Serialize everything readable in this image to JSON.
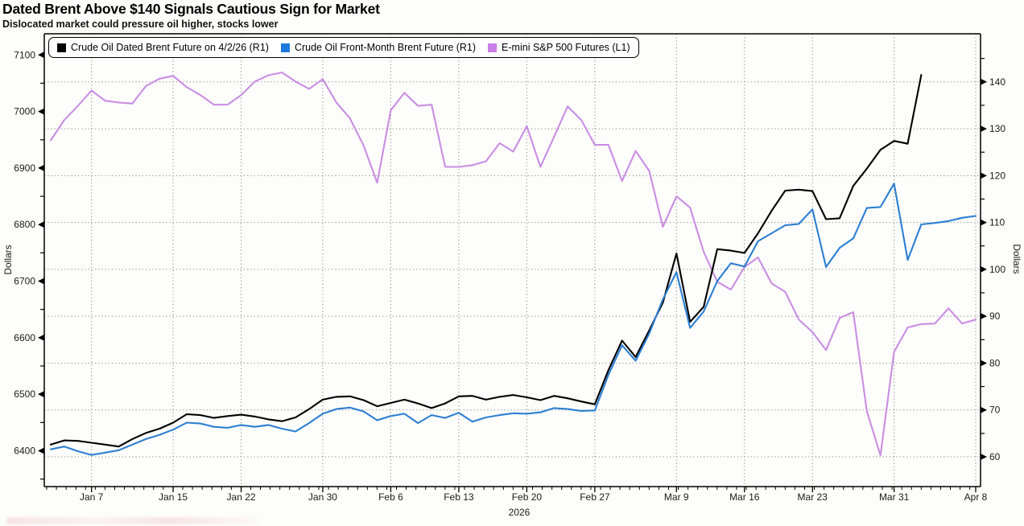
{
  "header": {
    "title": "Dated Brent Above $140 Signals Cautious Sign for Market",
    "subtitle": "Dislocated market could pressure oil higher, stocks lower"
  },
  "legend": {
    "items": [
      {
        "label": "Crude Oil Dated Brent Future on 4/2/26 (R1)",
        "color": "#000000"
      },
      {
        "label": "Crude Oil Front-Month Brent Future (R1)",
        "color": "#1d78e0"
      },
      {
        "label": "E-mini S&P 500 Futures (L1)",
        "color": "#c97ee8"
      }
    ]
  },
  "axes": {
    "left": {
      "title": "Dollars",
      "ticks": [
        6400,
        6500,
        6600,
        6700,
        6800,
        6900,
        7000,
        7100
      ]
    },
    "right": {
      "title": "Dollars",
      "ticks": [
        60,
        70,
        80,
        90,
        100,
        110,
        120,
        130,
        140
      ]
    },
    "x": {
      "year_label": "2026",
      "ticks": [
        {
          "label": "Jan 7",
          "index": 3
        },
        {
          "label": "Jan 15",
          "index": 9
        },
        {
          "label": "Jan 22",
          "index": 14
        },
        {
          "label": "Jan 30",
          "index": 20
        },
        {
          "label": "Feb 6",
          "index": 25
        },
        {
          "label": "Feb 13",
          "index": 30
        },
        {
          "label": "Feb 20",
          "index": 35
        },
        {
          "label": "Feb 27",
          "index": 40
        },
        {
          "label": "Mar 9",
          "index": 46
        },
        {
          "label": "Mar 16",
          "index": 51
        },
        {
          "label": "Mar 23",
          "index": 56
        },
        {
          "label": "Mar 31",
          "index": 62
        },
        {
          "label": "Apr 8",
          "index": 68
        }
      ]
    }
  },
  "chart_data": {
    "type": "line",
    "title": "Dated Brent Above $140 Signals Cautious Sign for Market",
    "x_dates": [
      "Jan 2",
      "Jan 5",
      "Jan 6",
      "Jan 7",
      "Jan 8",
      "Jan 9",
      "Jan 12",
      "Jan 13",
      "Jan 14",
      "Jan 15",
      "Jan 16",
      "Jan 19",
      "Jan 20",
      "Jan 21",
      "Jan 22",
      "Jan 23",
      "Jan 26",
      "Jan 27",
      "Jan 28",
      "Jan 29",
      "Jan 30",
      "Feb 2",
      "Feb 3",
      "Feb 4",
      "Feb 5",
      "Feb 6",
      "Feb 9",
      "Feb 10",
      "Feb 11",
      "Feb 12",
      "Feb 13",
      "Feb 16",
      "Feb 17",
      "Feb 18",
      "Feb 19",
      "Feb 20",
      "Feb 23",
      "Feb 24",
      "Feb 25",
      "Feb 26",
      "Feb 27",
      "Mar 2",
      "Mar 3",
      "Mar 4",
      "Mar 5",
      "Mar 6",
      "Mar 9",
      "Mar 10",
      "Mar 11",
      "Mar 12",
      "Mar 13",
      "Mar 16",
      "Mar 17",
      "Mar 18",
      "Mar 19",
      "Mar 20",
      "Mar 23",
      "Mar 24",
      "Mar 25",
      "Mar 26",
      "Mar 27",
      "Mar 30",
      "Mar 31",
      "Apr 1",
      "Apr 2",
      "Apr 3",
      "Apr 6",
      "Apr 7",
      "Apr 8"
    ],
    "year": "2026",
    "left_axis": {
      "label": "Dollars",
      "tick_min": 6400,
      "tick_max": 7100,
      "plot_min": 6329,
      "plot_max": 7119
    },
    "right_axis": {
      "label": "Dollars",
      "tick_min": 60,
      "tick_max": 140,
      "plot_min": 52.8,
      "plot_max": 148
    },
    "grid": {
      "horizontal": "dotted at right-axis ticks",
      "vertical": "dotted at labeled dates"
    },
    "legend_position": "top-left inside plot, boxed",
    "series": [
      {
        "name": "E-mini S&P 500 Futures (L1)",
        "axis": "left",
        "color": "#c98ee2",
        "values": [
          6949,
          6985,
          7010,
          7037,
          7019,
          7016,
          7014,
          7045,
          7058,
          7063,
          7043,
          7029,
          7012,
          7012,
          7029,
          7053,
          7064,
          7069,
          7053,
          7040,
          7057,
          7016,
          6988,
          6940,
          6874,
          7002,
          7033,
          7010,
          7012,
          6902,
          6902,
          6905,
          6912,
          6944,
          6929,
          6974,
          6902,
          6955,
          7009,
          6985,
          6941,
          6941,
          6877,
          6930,
          6895,
          6796,
          6850,
          6830,
          6752,
          6699,
          6685,
          6725,
          6742,
          6696,
          6681,
          6632,
          6610,
          6578,
          6635,
          6645,
          6470,
          6392,
          6575,
          6618,
          6624,
          6625,
          6652,
          6625,
          6632
        ]
      },
      {
        "name": "Crude Oil Dated Brent Future on 4/2/26 (R1)",
        "axis": "right",
        "color": "#000000",
        "values": [
          62.6,
          63.5,
          63.4,
          63.0,
          62.6,
          62.2,
          63.8,
          65.1,
          66.0,
          67.3,
          69.1,
          68.9,
          68.3,
          68.7,
          69.0,
          68.6,
          68.0,
          67.6,
          68.4,
          70.2,
          72.2,
          72.8,
          72.9,
          72.1,
          70.8,
          71.5,
          72.2,
          71.4,
          70.4,
          71.4,
          72.9,
          73.0,
          72.2,
          72.8,
          73.2,
          72.7,
          72.1,
          73.0,
          72.5,
          71.8,
          71.2,
          78.5,
          84.8,
          81.3,
          87.0,
          92.9,
          103.4,
          88.8,
          92.0,
          104.3,
          104.0,
          103.5,
          107.7,
          112.5,
          116.8,
          117.0,
          116.7,
          110.7,
          110.9,
          117.8,
          121.5,
          125.5,
          127.4,
          126.8,
          141.5,
          null,
          null,
          null,
          null
        ]
      },
      {
        "name": "Crude Oil Front-Month Brent Future (R1)",
        "axis": "right",
        "color": "#2d7fd1",
        "values": [
          61.6,
          62.2,
          61.2,
          60.4,
          60.9,
          61.4,
          62.6,
          63.8,
          64.7,
          65.8,
          67.3,
          67.1,
          66.4,
          66.2,
          66.8,
          66.4,
          66.8,
          66.0,
          65.4,
          67.2,
          69.2,
          70.2,
          70.5,
          69.7,
          67.8,
          68.7,
          69.2,
          67.2,
          68.9,
          68.3,
          69.4,
          67.5,
          68.4,
          68.9,
          69.3,
          69.2,
          69.5,
          70.4,
          70.2,
          69.8,
          69.9,
          77.5,
          83.8,
          80.5,
          86.3,
          93.6,
          99.4,
          87.5,
          91.0,
          97.5,
          101.3,
          100.6,
          106.0,
          107.7,
          109.4,
          109.7,
          112.8,
          100.5,
          104.6,
          106.6,
          113.1,
          113.3,
          118.3,
          102.0,
          109.6,
          109.9,
          110.3,
          111.0,
          111.4
        ]
      }
    ]
  }
}
